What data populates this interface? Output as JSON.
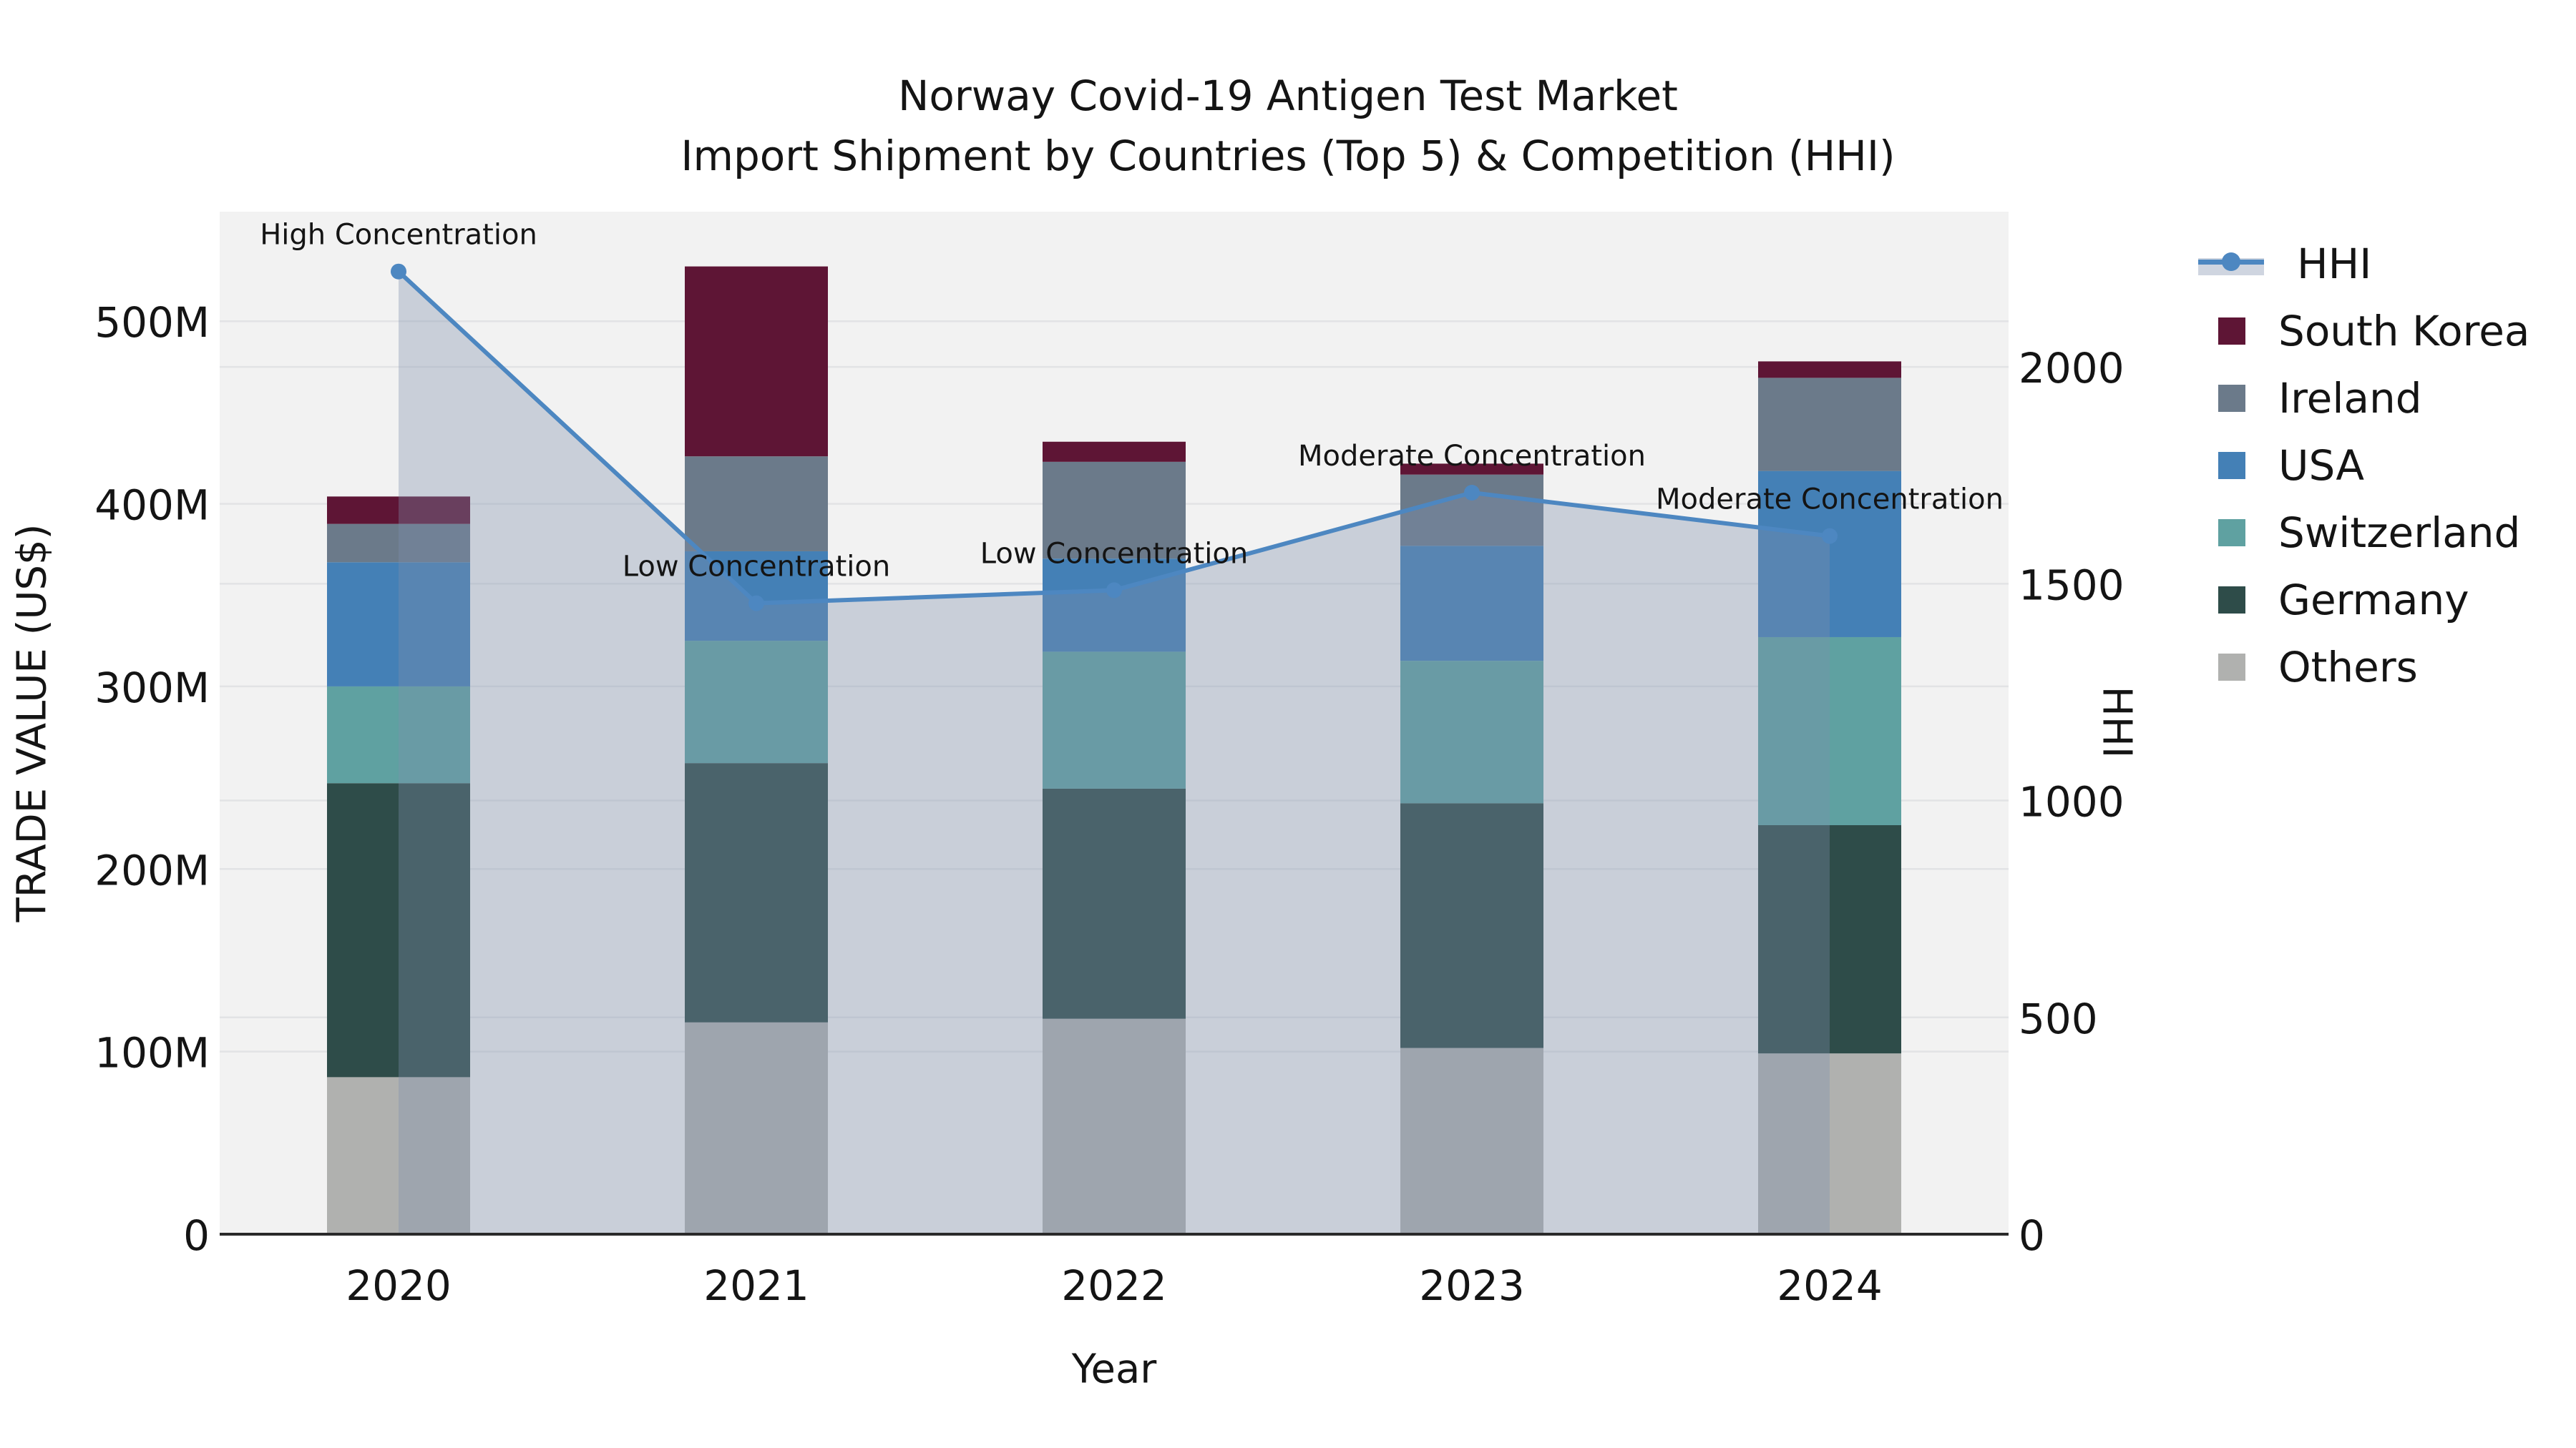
{
  "title": {
    "line1": "Norway Covid-19 Antigen Test Market",
    "line2": "Import Shipment by Countries (Top 5) & Competition (HHI)"
  },
  "colors": {
    "plot_background": "#f2f2f2",
    "gridline": "#e2e3e5",
    "axis_spine": "#2a2a2a",
    "text": "#141414",
    "hhi_line": "#4d87c1",
    "hhi_fill": "rgba(125,144,173,0.35)",
    "hhi_fill_solid": "#cfd5e0"
  },
  "legend": {
    "items": [
      {
        "label": "HHI",
        "type": "line",
        "color": "#4d87c1"
      },
      {
        "label": "South Korea",
        "type": "box",
        "color": "#5e1535"
      },
      {
        "label": "Ireland",
        "type": "box",
        "color": "#6b7a8a"
      },
      {
        "label": "USA",
        "type": "box",
        "color": "#4480b6"
      },
      {
        "label": "Switzerland",
        "type": "box",
        "color": "#5fa1a1"
      },
      {
        "label": "Germany",
        "type": "box",
        "color": "#2e4c49"
      },
      {
        "label": "Others",
        "type": "box",
        "color": "#b0b1af"
      }
    ]
  },
  "chart_data": {
    "type": "bar",
    "subtype": "stacked bars (left axis, trade value US$ millions) + HHI line with area fill (right axis)",
    "categories": [
      "2020",
      "2021",
      "2022",
      "2023",
      "2024"
    ],
    "series": [
      {
        "name": "Others",
        "color": "#b0b1af",
        "values": [
          86,
          116,
          118,
          102,
          99
        ]
      },
      {
        "name": "Germany",
        "color": "#2e4c49",
        "values": [
          161,
          142,
          126,
          134,
          125
        ]
      },
      {
        "name": "Switzerland",
        "color": "#5fa1a1",
        "values": [
          53,
          67,
          75,
          78,
          103
        ]
      },
      {
        "name": "USA",
        "color": "#4480b6",
        "values": [
          68,
          49,
          51,
          63,
          91
        ]
      },
      {
        "name": "Ireland",
        "color": "#6b7a8a",
        "values": [
          21,
          52,
          53,
          39,
          51
        ]
      },
      {
        "name": "South Korea",
        "color": "#5e1535",
        "values": [
          15,
          104,
          11,
          6,
          9
        ]
      }
    ],
    "bar_totals_musd": [
      404,
      530,
      434,
      422,
      478
    ],
    "line_series": {
      "name": "HHI",
      "values": [
        2220,
        1455,
        1485,
        1710,
        1610
      ],
      "axis": "right",
      "has_markers": true,
      "area_fill": true
    },
    "annotations": [
      {
        "category": "2020",
        "text": "High Concentration"
      },
      {
        "category": "2021",
        "text": "Low Concentration"
      },
      {
        "category": "2022",
        "text": "Low Concentration"
      },
      {
        "category": "2023",
        "text": "Moderate Concentration"
      },
      {
        "category": "2024",
        "text": "Moderate Concentration"
      }
    ],
    "title": "Norway Covid-19 Antigen Test Market — Import Shipment by Countries (Top 5) & Competition (HHI)",
    "xlabel": "Year",
    "ylabel_left": "TRADE VALUE (US$)",
    "ylabel_right": "HHI",
    "left_axis": {
      "tick_labels": [
        "0",
        "100M",
        "200M",
        "300M",
        "400M",
        "500M"
      ],
      "tick_values": [
        0,
        100,
        200,
        300,
        400,
        500
      ],
      "range": [
        0,
        560
      ],
      "unit": "million US$"
    },
    "right_axis": {
      "tick_labels": [
        "0",
        "500",
        "1000",
        "1500",
        "2000"
      ],
      "tick_values": [
        0,
        500,
        1000,
        1500,
        2000
      ],
      "range": [
        0,
        2358
      ]
    },
    "grid": "horizontal gridlines for both axes' ticks"
  }
}
